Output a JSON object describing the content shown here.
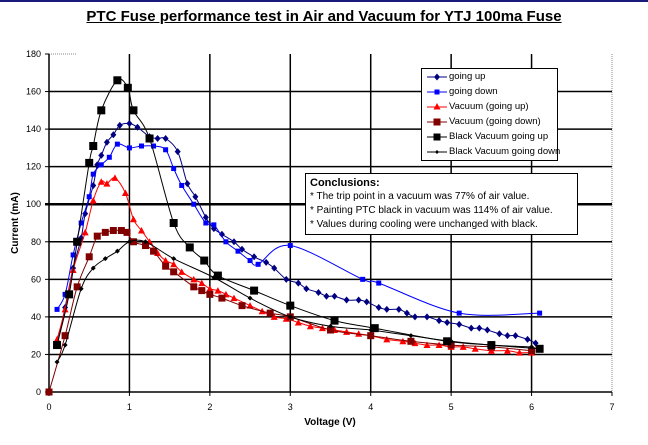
{
  "chart_data": {
    "type": "line",
    "title": "PTC Fuse performance test in Air and Vacuum for YTJ 100ma Fuse",
    "xlabel": "Voltage (V)",
    "ylabel": "Current (mA)",
    "xlim": [
      0,
      7
    ],
    "ylim": [
      0,
      180
    ],
    "xticks": [
      "0",
      "1",
      "2",
      "3",
      "4",
      "5",
      "6",
      "7"
    ],
    "yticks": [
      "0",
      "20",
      "40",
      "60",
      "80",
      "100",
      "120",
      "140",
      "160",
      "180"
    ],
    "grid": true,
    "reference_line_y": 100,
    "legend_position": "top-right",
    "series": [
      {
        "name": "going up",
        "color": "#000080",
        "marker": "diamond",
        "points": [
          [
            0.1,
            25
          ],
          [
            0.2,
            45
          ],
          [
            0.3,
            66
          ],
          [
            0.4,
            82
          ],
          [
            0.45,
            95
          ],
          [
            0.55,
            110
          ],
          [
            0.6,
            121
          ],
          [
            0.65,
            126
          ],
          [
            0.72,
            133
          ],
          [
            0.8,
            137
          ],
          [
            0.88,
            142
          ],
          [
            1.0,
            143
          ],
          [
            1.1,
            141
          ],
          [
            1.25,
            136
          ],
          [
            1.35,
            135
          ],
          [
            1.45,
            135
          ],
          [
            1.6,
            128
          ],
          [
            1.72,
            111
          ],
          [
            1.82,
            104
          ],
          [
            1.95,
            93
          ],
          [
            2.05,
            87
          ],
          [
            2.15,
            84
          ],
          [
            2.3,
            80
          ],
          [
            2.4,
            76
          ],
          [
            2.55,
            72
          ],
          [
            2.7,
            69
          ],
          [
            2.8,
            66
          ],
          [
            2.95,
            60
          ],
          [
            3.1,
            58
          ],
          [
            3.2,
            55
          ],
          [
            3.35,
            53
          ],
          [
            3.45,
            51
          ],
          [
            3.55,
            51
          ],
          [
            3.7,
            49
          ],
          [
            3.85,
            49
          ],
          [
            3.95,
            48
          ],
          [
            4.1,
            45
          ],
          [
            4.2,
            44
          ],
          [
            4.35,
            44
          ],
          [
            4.45,
            42
          ],
          [
            4.55,
            40
          ],
          [
            4.7,
            40
          ],
          [
            4.85,
            38
          ],
          [
            4.95,
            37
          ],
          [
            5.1,
            36
          ],
          [
            5.25,
            34
          ],
          [
            5.35,
            34
          ],
          [
            5.45,
            33
          ],
          [
            5.6,
            31
          ],
          [
            5.7,
            30
          ],
          [
            5.8,
            30
          ],
          [
            5.95,
            28
          ],
          [
            6.05,
            26
          ]
        ]
      },
      {
        "name": "going down",
        "color": "#0000ff",
        "marker": "square",
        "points": [
          [
            0.1,
            44
          ],
          [
            0.2,
            52
          ],
          [
            0.3,
            73
          ],
          [
            0.4,
            90
          ],
          [
            0.5,
            104
          ],
          [
            0.55,
            116
          ],
          [
            0.65,
            121
          ],
          [
            0.75,
            125
          ],
          [
            0.85,
            132
          ],
          [
            1.0,
            130
          ],
          [
            1.15,
            131
          ],
          [
            1.3,
            131
          ],
          [
            1.45,
            129
          ],
          [
            1.55,
            119
          ],
          [
            1.65,
            110
          ],
          [
            1.8,
            100
          ],
          [
            1.95,
            90
          ],
          [
            2.05,
            89
          ],
          [
            2.2,
            80
          ],
          [
            2.35,
            75
          ],
          [
            2.5,
            70
          ],
          [
            2.6,
            68
          ],
          [
            3.0,
            78
          ],
          [
            3.9,
            60
          ],
          [
            4.1,
            58
          ],
          [
            5.1,
            42
          ],
          [
            6.1,
            42
          ]
        ]
      },
      {
        "name": "Vacuum (going up)",
        "color": "#ff0000",
        "marker": "triangle",
        "points": [
          [
            0.1,
            28
          ],
          [
            0.2,
            44
          ],
          [
            0.3,
            65
          ],
          [
            0.45,
            85
          ],
          [
            0.55,
            102
          ],
          [
            0.65,
            112
          ],
          [
            0.72,
            111
          ],
          [
            0.82,
            114
          ],
          [
            0.95,
            106
          ],
          [
            1.05,
            92
          ],
          [
            1.15,
            86
          ],
          [
            1.25,
            80
          ],
          [
            1.35,
            74
          ],
          [
            1.45,
            70
          ],
          [
            1.55,
            68
          ],
          [
            1.65,
            64
          ],
          [
            1.8,
            60
          ],
          [
            1.9,
            58
          ],
          [
            2.0,
            55
          ],
          [
            2.1,
            54
          ],
          [
            2.2,
            52
          ],
          [
            2.3,
            50
          ],
          [
            2.5,
            46
          ],
          [
            2.65,
            43
          ],
          [
            2.8,
            40
          ],
          [
            2.95,
            39
          ],
          [
            3.1,
            37
          ],
          [
            3.25,
            35
          ],
          [
            3.4,
            34
          ],
          [
            3.55,
            33
          ],
          [
            3.7,
            32
          ],
          [
            3.85,
            31
          ],
          [
            4.0,
            30
          ],
          [
            4.2,
            28
          ],
          [
            4.4,
            27
          ],
          [
            4.55,
            26
          ],
          [
            4.7,
            25
          ],
          [
            4.85,
            25
          ],
          [
            5.0,
            24
          ],
          [
            5.15,
            24
          ],
          [
            5.3,
            23
          ],
          [
            5.5,
            22
          ],
          [
            5.7,
            22
          ],
          [
            5.85,
            21
          ],
          [
            6.0,
            21
          ]
        ]
      },
      {
        "name": "Vacuum (going down)",
        "color": "#800000",
        "marker": "square",
        "points": [
          [
            0,
            0
          ],
          [
            0.2,
            30
          ],
          [
            0.35,
            56
          ],
          [
            0.5,
            72
          ],
          [
            0.6,
            83
          ],
          [
            0.7,
            85
          ],
          [
            0.8,
            86
          ],
          [
            0.9,
            86
          ],
          [
            0.97,
            85
          ],
          [
            1.05,
            80
          ],
          [
            1.2,
            78
          ],
          [
            1.3,
            75
          ],
          [
            1.45,
            67
          ],
          [
            1.55,
            64
          ],
          [
            1.8,
            56
          ],
          [
            1.9,
            54
          ],
          [
            2.0,
            52
          ],
          [
            2.15,
            50
          ],
          [
            2.4,
            46
          ],
          [
            2.75,
            42
          ],
          [
            3.0,
            40
          ],
          [
            3.5,
            33
          ],
          [
            4.0,
            30
          ],
          [
            4.5,
            27
          ],
          [
            5.0,
            25
          ],
          [
            5.5,
            24
          ],
          [
            6.0,
            22
          ]
        ]
      },
      {
        "name": "Black Vacuum going up",
        "color": "#000000",
        "marker": "square-large",
        "points": [
          [
            0.1,
            25
          ],
          [
            0.25,
            52
          ],
          [
            0.35,
            80
          ],
          [
            0.5,
            122
          ],
          [
            0.55,
            131
          ],
          [
            0.65,
            150
          ],
          [
            0.85,
            166
          ],
          [
            0.98,
            162
          ],
          [
            1.05,
            150
          ],
          [
            1.25,
            135
          ],
          [
            1.55,
            90
          ],
          [
            1.75,
            77
          ],
          [
            1.93,
            70
          ],
          [
            2.1,
            62
          ],
          [
            2.55,
            54
          ],
          [
            3.0,
            46
          ],
          [
            3.55,
            38
          ],
          [
            4.05,
            34
          ],
          [
            4.95,
            27
          ],
          [
            5.5,
            25
          ],
          [
            6.1,
            23
          ]
        ]
      },
      {
        "name": "Black Vacuum going down",
        "color": "#000000",
        "marker": "diamond-small",
        "points": [
          [
            0.1,
            16
          ],
          [
            0.2,
            25
          ],
          [
            0.4,
            55
          ],
          [
            0.55,
            66
          ],
          [
            0.7,
            71
          ],
          [
            0.85,
            75
          ],
          [
            1.0,
            80
          ],
          [
            1.2,
            80
          ],
          [
            1.55,
            71
          ],
          [
            2.05,
            61
          ],
          [
            2.5,
            50
          ],
          [
            3.0,
            40
          ],
          [
            3.5,
            35
          ],
          [
            4.0,
            33
          ],
          [
            4.5,
            30
          ],
          [
            5.0,
            27
          ],
          [
            5.5,
            25
          ],
          [
            6.0,
            24
          ]
        ]
      }
    ]
  },
  "legend": {
    "items": [
      "going up",
      "going down",
      "Vacuum (going up)",
      "Vacuum (going down)",
      "Black Vacuum going up",
      "Black Vacuum going down"
    ]
  },
  "conclusions": {
    "heading": "Conclusions:",
    "lines": [
      "* The trip point in a vacuum was 77% of air value.",
      "* Painting PTC black in vacuum was 114% of air value.",
      "* Values during cooling were unchanged with black."
    ]
  }
}
